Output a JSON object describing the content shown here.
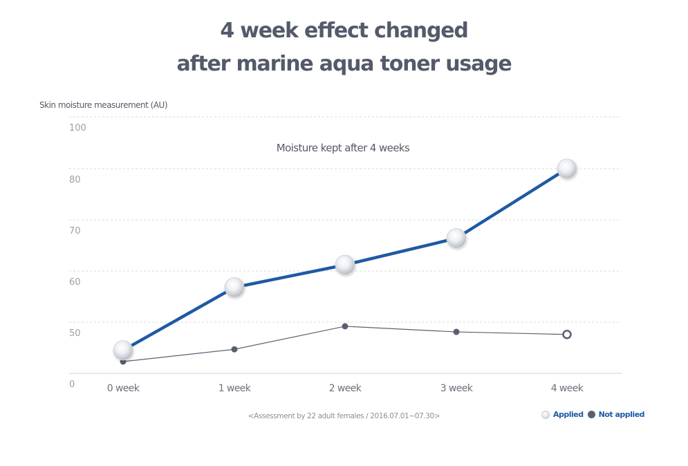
{
  "chart_data": {
    "type": "line",
    "title": [
      "4 week effect changed",
      "after marine aqua toner usage"
    ],
    "ylabel": "Skin moisture measurement (AU)",
    "xlabel": "",
    "categories": [
      "0 week",
      "1 week",
      "2 week",
      "3 week",
      "4 week"
    ],
    "y_ticks": [
      0,
      50,
      60,
      70,
      80,
      100
    ],
    "ylim": [
      0,
      100
    ],
    "axis_break": "between 0 and 50 (axis is broken; 50-80 shown to scale, 100 shown above 80 at compressed spacing)",
    "grid": true,
    "annotation": "Moisture kept after 4 weeks",
    "note": "<Assessment by 22 adult females / 2016.07.01~07.30>",
    "legend_position": "bottom-right",
    "series": [
      {
        "name": "Applied",
        "values": [
          44.5,
          56.8,
          61.2,
          66.4,
          80.0
        ],
        "color": "#1e5aa3",
        "marker": "pearl"
      },
      {
        "name": "Not applied",
        "values": [
          42.3,
          44.7,
          49.2,
          48.1,
          47.6
        ],
        "color": "#5a5f70",
        "marker": "dot",
        "last_marker": "hollow"
      }
    ]
  }
}
